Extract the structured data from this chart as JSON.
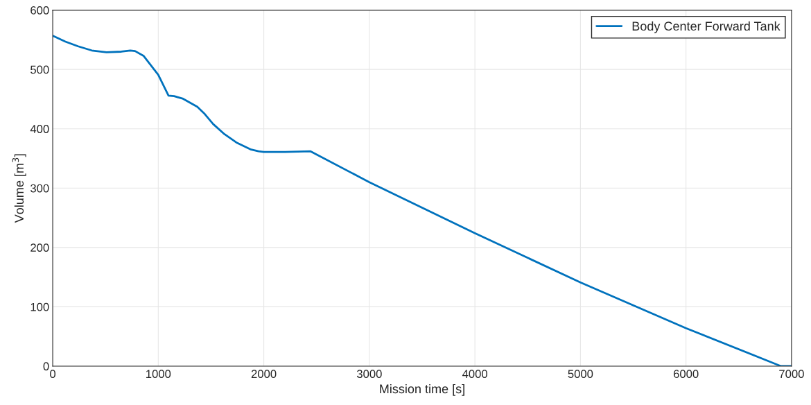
{
  "chart_data": {
    "type": "line",
    "xlabel": "Mission time [s]",
    "ylabel": "Volume [m$^{3}$]",
    "xlim": [
      0,
      7000
    ],
    "xticks": [
      0,
      1000,
      2000,
      3000,
      4000,
      5000,
      6000,
      7000
    ],
    "ylim": [
      0,
      600
    ],
    "yticks": [
      0,
      100,
      200,
      300,
      400,
      500,
      600
    ],
    "grid": true,
    "legend": "top right",
    "series": [
      {
        "name": "Body Center Forward Tank",
        "color": "#0072bd",
        "x": [
          0,
          120,
          240,
          370,
          510,
          650,
          735,
          780,
          860,
          1000,
          1097,
          1150,
          1230,
          1370,
          1440,
          1520,
          1620,
          1740,
          1880,
          1950,
          2000,
          2200,
          2443,
          3000,
          4000,
          5000,
          6000,
          6900,
          7000
        ],
        "values": [
          557,
          547,
          539,
          532,
          529,
          530,
          532,
          531,
          523,
          491,
          456,
          455,
          451,
          437,
          425,
          408,
          392,
          377,
          365,
          362,
          361,
          361,
          362,
          310,
          224,
          141,
          64,
          0,
          0
        ]
      }
    ]
  }
}
